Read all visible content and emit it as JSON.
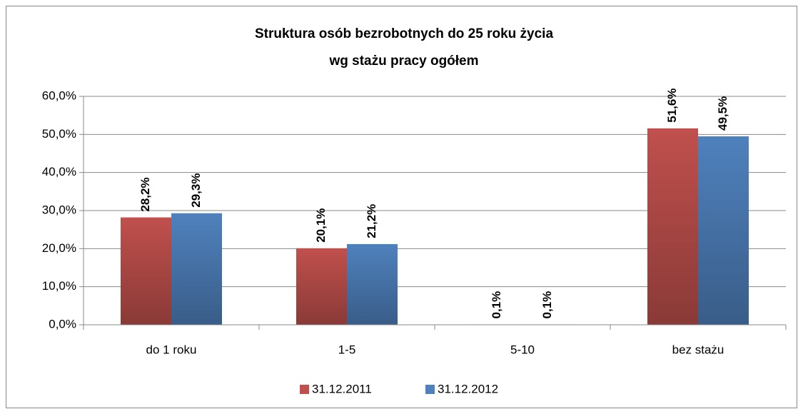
{
  "chart_data": {
    "type": "bar",
    "title": [
      "Struktura osób bezrobotnych do 25 roku życia",
      "wg stażu  pracy ogółem"
    ],
    "categories": [
      "do 1 roku",
      "1-5",
      "5-10",
      "bez stażu"
    ],
    "series": [
      {
        "name": "31.12.2011",
        "color": "#c0504d",
        "values": [
          28.2,
          20.1,
          0.1,
          51.6
        ],
        "value_labels": [
          "28,2%",
          "20,1%",
          "0,1%",
          "51,6%"
        ]
      },
      {
        "name": "31.12.2012",
        "color": "#4f81bd",
        "values": [
          29.3,
          21.2,
          0.1,
          49.5
        ],
        "value_labels": [
          "29,3%",
          "21,2%",
          "0,1%",
          "49,5%"
        ]
      }
    ],
    "ylim": [
      0,
      60
    ],
    "yticks": [
      {
        "value": 0,
        "label": "0,0%"
      },
      {
        "value": 10,
        "label": "10,0%"
      },
      {
        "value": 20,
        "label": "20,0%"
      },
      {
        "value": 30,
        "label": "30,0%"
      },
      {
        "value": 40,
        "label": "40,0%"
      },
      {
        "value": 50,
        "label": "50,0%"
      },
      {
        "value": 60,
        "label": "60,0%"
      }
    ],
    "grid": true,
    "legend": "bottom"
  }
}
